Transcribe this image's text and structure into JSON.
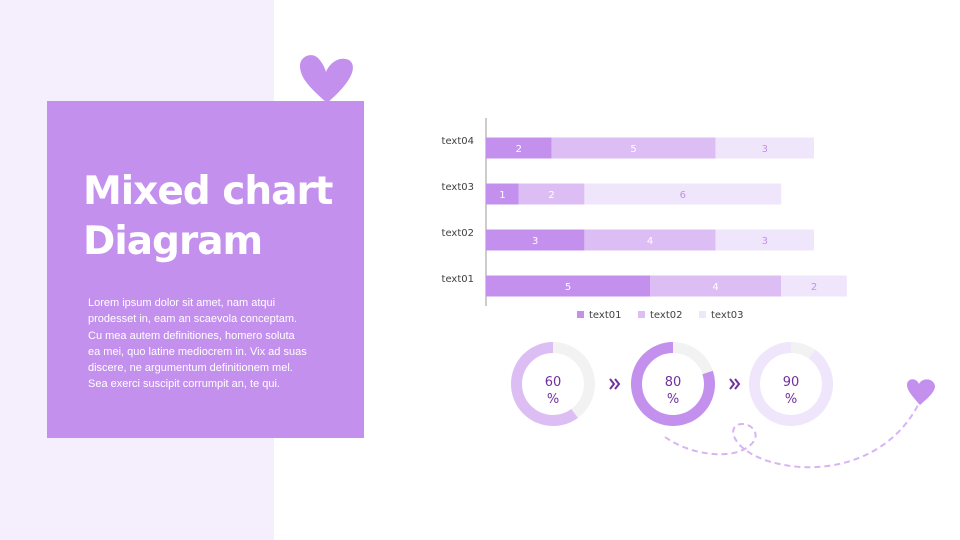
{
  "title_lines": [
    "Mixed chart",
    "Diagram"
  ],
  "body_lines": [
    "Lorem  ipsum dolor sit amet, nam atqui",
    "prodesset in, eam  an scaevola conceptam.",
    "Cu mea  autem  definitiones, homero soluta",
    "ea mei,  quo latine mediocrem in. Vix ad suas",
    "discere, ne  argumentum  definitionem mel.",
    "Sea exerci  suscipit corrumpit an, te qui."
  ],
  "colors": {
    "accent": "#c390ee",
    "mid": "#dcbef4",
    "light": "#f0e6fb",
    "track": "#f2f2f2",
    "text_dark": "#7030a0"
  },
  "chart_data": [
    {
      "type": "bar",
      "orientation": "horizontal",
      "stacked": true,
      "categories": [
        "text04",
        "text03",
        "text02",
        "text01"
      ],
      "series": [
        {
          "name": "text01",
          "values": [
            2,
            1,
            3,
            5
          ],
          "color": "#c390ee"
        },
        {
          "name": "text02",
          "values": [
            5,
            2,
            4,
            4
          ],
          "color": "#dcbef4"
        },
        {
          "name": "text03",
          "values": [
            3,
            6,
            3,
            2
          ],
          "color": "#f0e6fb"
        }
      ],
      "data_labels": true,
      "legend": "bottom",
      "grid": false
    },
    {
      "type": "pie",
      "variant": "donut",
      "items": [
        {
          "value": 60,
          "label": "60",
          "unit": "%",
          "color": "#dcbef4"
        },
        {
          "value": 80,
          "label": "80",
          "unit": "%",
          "color": "#c390ee"
        },
        {
          "value": 90,
          "label": "90",
          "unit": "%",
          "color": "#f0e6fb"
        }
      ]
    }
  ]
}
